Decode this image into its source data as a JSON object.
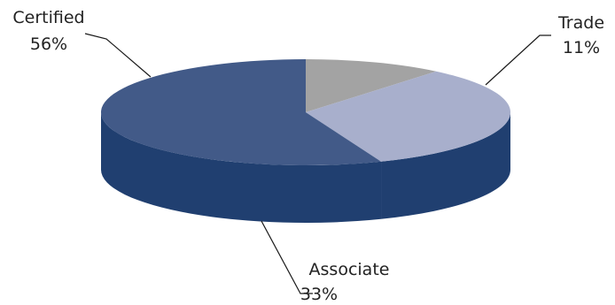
{
  "chart_data": {
    "type": "pie",
    "style": "3d-tilted",
    "slices": [
      {
        "name": "Trade",
        "label": "Trade",
        "percent_label": "11%",
        "value": 11,
        "color": "#a3a3a3",
        "side_color": "#6d6d6d"
      },
      {
        "name": "Associate",
        "label": "Associate",
        "percent_label": "33%",
        "value": 33,
        "color": "#a8afcc",
        "side_color": "#203f70"
      },
      {
        "name": "Certified",
        "label": "Certified",
        "percent_label": "56%",
        "value": 56,
        "color": "#425a88",
        "side_color": "#203f70"
      }
    ],
    "legend": "none"
  }
}
